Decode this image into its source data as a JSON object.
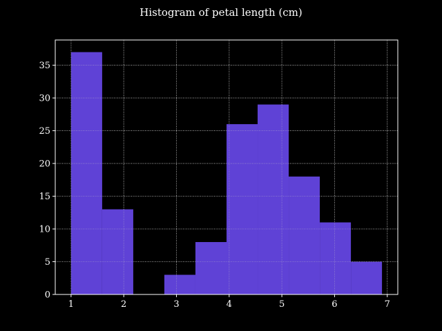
{
  "chart_data": {
    "type": "bar",
    "title": "Histogram of petal length (cm)",
    "xlabel": "",
    "ylabel": "",
    "bin_edges": [
      1.0,
      1.59,
      2.18,
      2.77,
      3.36,
      3.95,
      4.54,
      5.13,
      5.72,
      6.31,
      6.9
    ],
    "values": [
      37,
      13,
      0,
      3,
      8,
      26,
      29,
      18,
      11,
      5
    ],
    "xlim": [
      0.7,
      7.2
    ],
    "ylim": [
      0,
      38.85
    ],
    "xticks": [
      "1",
      "2",
      "3",
      "4",
      "5",
      "6",
      "7"
    ],
    "yticks": [
      "0",
      "5",
      "10",
      "15",
      "20",
      "25",
      "30",
      "35"
    ],
    "grid": true,
    "bar_color": "#5f42d6",
    "background": "#000000",
    "text_color": "#ffffff"
  }
}
